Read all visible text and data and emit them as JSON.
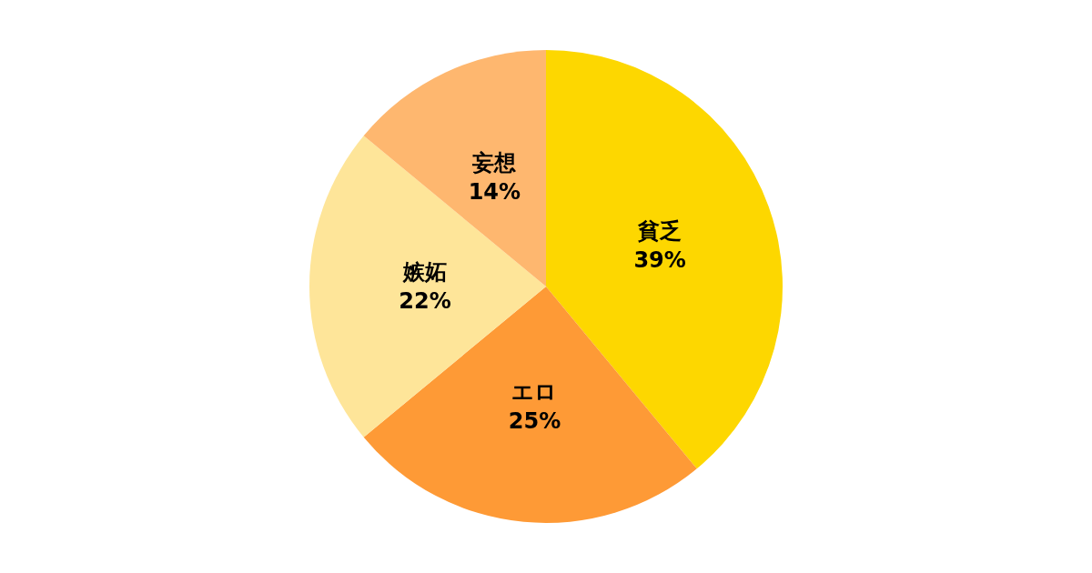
{
  "chart_data": {
    "type": "pie",
    "categories": [
      "貧乏",
      "エロ",
      "嫉妬",
      "妄想"
    ],
    "values": [
      39,
      25,
      22,
      14
    ],
    "value_labels": [
      "39%",
      "25%",
      "22%",
      "14%"
    ],
    "colors": [
      "#fdd700",
      "#fe9a36",
      "#fee599",
      "#feb76f"
    ],
    "legend": false
  }
}
